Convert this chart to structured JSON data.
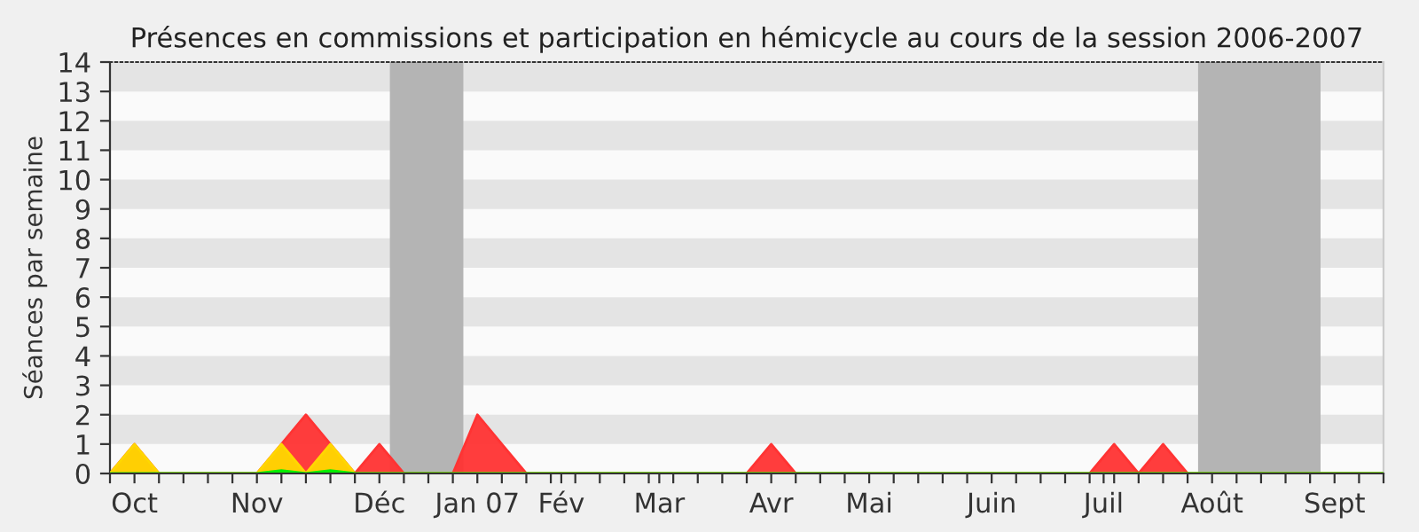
{
  "chart_data": {
    "type": "area",
    "title": "Présences en commissions et participation en hémicycle au cours de la session 2006-2007",
    "ylabel": "Séances par semaine",
    "x": [
      "2006-09-25",
      "2006-10-02",
      "2006-10-09",
      "2006-10-16",
      "2006-10-23",
      "2006-10-30",
      "2006-11-06",
      "2006-11-13",
      "2006-11-20",
      "2006-11-27",
      "2006-12-04",
      "2006-12-11",
      "2006-12-18",
      "2006-12-25",
      "2007-01-01",
      "2007-01-08",
      "2007-01-15",
      "2007-01-22",
      "2007-01-29",
      "2007-02-05",
      "2007-02-12",
      "2007-02-19",
      "2007-02-26",
      "2007-03-05",
      "2007-03-12",
      "2007-03-19",
      "2007-03-26",
      "2007-04-02",
      "2007-04-09",
      "2007-04-16",
      "2007-04-23",
      "2007-04-30",
      "2007-05-07",
      "2007-05-14",
      "2007-05-21",
      "2007-05-28",
      "2007-06-04",
      "2007-06-11",
      "2007-06-18",
      "2007-06-25",
      "2007-07-02",
      "2007-07-09",
      "2007-07-16",
      "2007-07-23",
      "2007-07-30",
      "2007-08-06",
      "2007-08-13",
      "2007-08-20",
      "2007-08-27",
      "2007-09-03",
      "2007-09-10",
      "2007-09-17",
      "2007-09-24"
    ],
    "xlim": [
      "2006-09-25",
      "2007-09-24"
    ],
    "xticks": [
      {
        "value": "2006-09-25",
        "label": null
      },
      {
        "value": "2006-10-02",
        "label": "Oct"
      },
      {
        "value": "2006-10-09",
        "label": null
      },
      {
        "value": "2006-10-16",
        "label": null
      },
      {
        "value": "2006-10-23",
        "label": null
      },
      {
        "value": "2006-10-30",
        "label": null
      },
      {
        "value": "2006-11-06",
        "label": "Nov"
      },
      {
        "value": "2006-11-13",
        "label": null
      },
      {
        "value": "2006-11-20",
        "label": null
      },
      {
        "value": "2006-11-27",
        "label": null
      },
      {
        "value": "2006-12-04",
        "label": null
      },
      {
        "value": "2006-12-11",
        "label": "Déc"
      },
      {
        "value": "2006-12-18",
        "label": null
      },
      {
        "value": "2006-12-25",
        "label": null
      },
      {
        "value": "2007-01-01",
        "label": null
      },
      {
        "value": "2007-01-08",
        "label": "Jan 07"
      },
      {
        "value": "2007-01-15",
        "label": null
      },
      {
        "value": "2007-01-22",
        "label": null
      },
      {
        "value": "2007-01-29",
        "label": null
      },
      {
        "value": "2007-02-01",
        "label": "Fév"
      },
      {
        "value": "2007-02-05",
        "label": null
      },
      {
        "value": "2007-02-12",
        "label": null
      },
      {
        "value": "2007-02-19",
        "label": null
      },
      {
        "value": "2007-02-26",
        "label": null
      },
      {
        "value": "2007-03-01",
        "label": "Mar"
      },
      {
        "value": "2007-03-05",
        "label": null
      },
      {
        "value": "2007-03-12",
        "label": null
      },
      {
        "value": "2007-03-19",
        "label": null
      },
      {
        "value": "2007-03-26",
        "label": null
      },
      {
        "value": "2007-04-02",
        "label": "Avr"
      },
      {
        "value": "2007-04-09",
        "label": null
      },
      {
        "value": "2007-04-16",
        "label": null
      },
      {
        "value": "2007-04-23",
        "label": null
      },
      {
        "value": "2007-04-30",
        "label": "Mai"
      },
      {
        "value": "2007-05-07",
        "label": null
      },
      {
        "value": "2007-05-14",
        "label": null
      },
      {
        "value": "2007-05-21",
        "label": null
      },
      {
        "value": "2007-05-28",
        "label": null
      },
      {
        "value": "2007-06-04",
        "label": "Juin"
      },
      {
        "value": "2007-06-11",
        "label": null
      },
      {
        "value": "2007-06-18",
        "label": null
      },
      {
        "value": "2007-06-25",
        "label": null
      },
      {
        "value": "2007-07-02",
        "label": null
      },
      {
        "value": "2007-07-06",
        "label": "Juil"
      },
      {
        "value": "2007-07-09",
        "label": null
      },
      {
        "value": "2007-07-16",
        "label": null
      },
      {
        "value": "2007-07-23",
        "label": null
      },
      {
        "value": "2007-07-30",
        "label": null
      },
      {
        "value": "2007-08-06",
        "label": "Août"
      },
      {
        "value": "2007-08-13",
        "label": null
      },
      {
        "value": "2007-08-20",
        "label": null
      },
      {
        "value": "2007-08-27",
        "label": null
      },
      {
        "value": "2007-09-03",
        "label": null
      },
      {
        "value": "2007-09-10",
        "label": "Sept"
      },
      {
        "value": "2007-09-17",
        "label": null
      },
      {
        "value": "2007-09-24",
        "label": null
      }
    ],
    "bands": [
      {
        "axis": "x",
        "from": "2006-12-14",
        "to": "2007-01-04",
        "color": "#b4b4b4"
      },
      {
        "axis": "x",
        "from": "2007-08-02",
        "to": "2007-09-06",
        "color": "#b4b4b4"
      }
    ],
    "series": [
      {
        "color": "#ff3333",
        "values": [
          0,
          1,
          0,
          0,
          0,
          0,
          0,
          1,
          2,
          1,
          0,
          1,
          0,
          0,
          0,
          2,
          1,
          0,
          0,
          0,
          0,
          0,
          0,
          0,
          0,
          0,
          0,
          1,
          0,
          0,
          0,
          0,
          0,
          0,
          0,
          0,
          0,
          0,
          0,
          0,
          0,
          1,
          0,
          1,
          0,
          0,
          0,
          0,
          0,
          0,
          0,
          0,
          0
        ]
      },
      {
        "color": "#ffd700",
        "values": [
          0,
          1,
          0,
          0,
          0,
          0,
          0,
          1,
          0,
          1,
          0,
          0,
          0,
          0,
          0,
          0,
          0,
          0,
          0,
          0,
          0,
          0,
          0,
          0,
          0,
          0,
          0,
          0,
          0,
          0,
          0,
          0,
          0,
          0,
          0,
          0,
          0,
          0,
          0,
          0,
          0,
          0,
          0,
          0,
          0,
          0,
          0,
          0,
          0,
          0,
          0,
          0,
          0
        ]
      },
      {
        "color": "#00ee00",
        "values": [
          0,
          0,
          0,
          0,
          0,
          0,
          0,
          0.1,
          0,
          0.1,
          0,
          0,
          0,
          0,
          0,
          0,
          0,
          0,
          0,
          0,
          0,
          0,
          0,
          0,
          0,
          0,
          0,
          0,
          0,
          0,
          0,
          0,
          0,
          0,
          0,
          0,
          0,
          0,
          0,
          0,
          0,
          0,
          0,
          0,
          0,
          0,
          0,
          0,
          0,
          0,
          0,
          0,
          0
        ]
      }
    ],
    "ylim": [
      0,
      14
    ],
    "yticks": [
      0,
      1,
      2,
      3,
      4,
      5,
      6,
      7,
      8,
      9,
      10,
      11,
      12,
      13,
      14
    ],
    "legend": false
  }
}
